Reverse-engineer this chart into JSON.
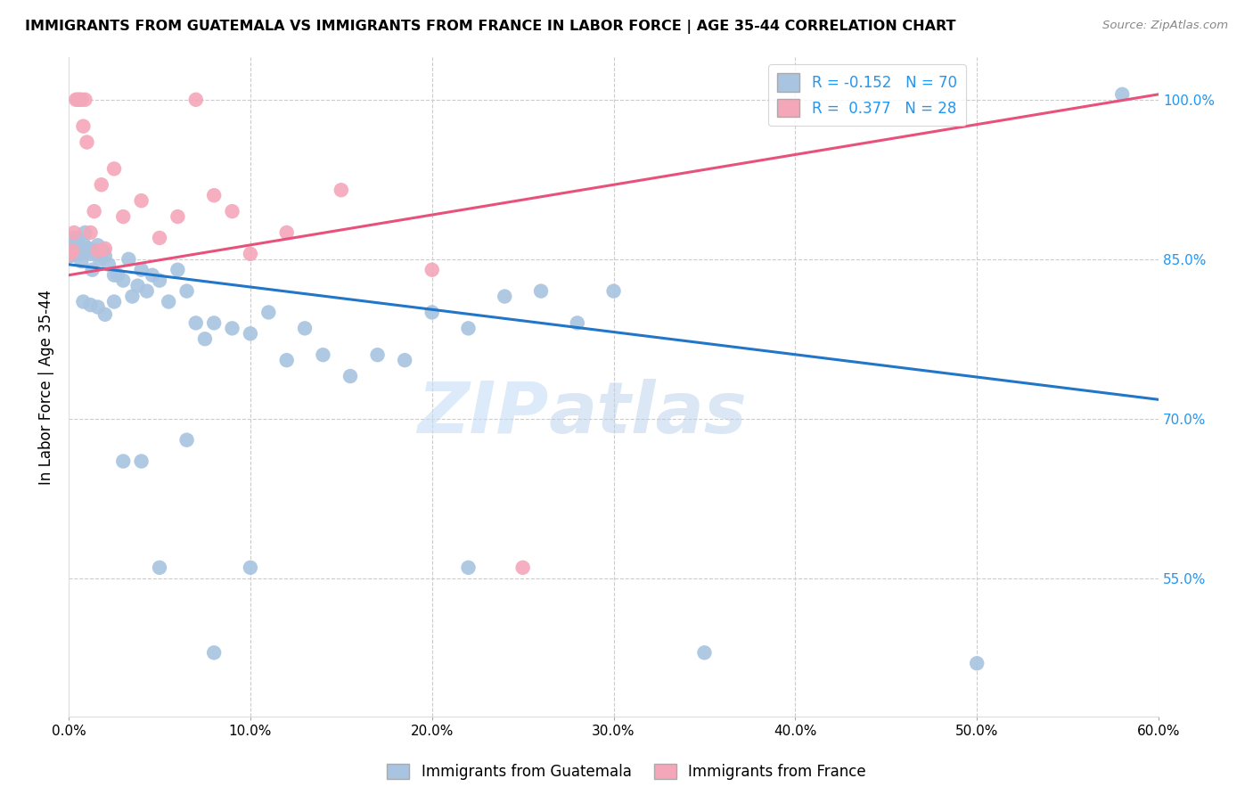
{
  "title": "IMMIGRANTS FROM GUATEMALA VS IMMIGRANTS FROM FRANCE IN LABOR FORCE | AGE 35-44 CORRELATION CHART",
  "source": "Source: ZipAtlas.com",
  "ylabel_label": "In Labor Force | Age 35-44",
  "xlim": [
    0.0,
    0.6
  ],
  "ylim": [
    0.42,
    1.04
  ],
  "ytick_positions": [
    0.55,
    0.7,
    0.85,
    1.0
  ],
  "ytick_labels": [
    "55.0%",
    "70.0%",
    "85.0%",
    "100.0%"
  ],
  "xtick_positions": [
    0.0,
    0.1,
    0.2,
    0.3,
    0.4,
    0.5,
    0.6
  ],
  "xtick_labels": [
    "0.0%",
    "10.0%",
    "20.0%",
    "30.0%",
    "40.0%",
    "50.0%",
    "60.0%"
  ],
  "r_guatemala": -0.152,
  "n_guatemala": 70,
  "r_france": 0.377,
  "n_france": 28,
  "color_guatemala": "#a8c4e0",
  "color_france": "#f4a7b9",
  "line_color_guatemala": "#2176c7",
  "line_color_france": "#e8527a",
  "watermark_zip": "ZIP",
  "watermark_atlas": "atlas",
  "guat_line_x0": 0.0,
  "guat_line_y0": 0.845,
  "guat_line_x1": 0.6,
  "guat_line_y1": 0.718,
  "france_line_x0": 0.0,
  "france_line_y0": 0.835,
  "france_line_x1": 0.6,
  "france_line_y1": 1.005,
  "guatemala_x": [
    0.001,
    0.002,
    0.003,
    0.004,
    0.005,
    0.006,
    0.007,
    0.008,
    0.009,
    0.01,
    0.011,
    0.012,
    0.013,
    0.014,
    0.015,
    0.016,
    0.017,
    0.018,
    0.019,
    0.02,
    0.022,
    0.025,
    0.027,
    0.03,
    0.033,
    0.035,
    0.038,
    0.04,
    0.043,
    0.046,
    0.05,
    0.055,
    0.06,
    0.065,
    0.07,
    0.075,
    0.08,
    0.09,
    0.1,
    0.11,
    0.12,
    0.13,
    0.14,
    0.155,
    0.17,
    0.185,
    0.2,
    0.22,
    0.24,
    0.26,
    0.28,
    0.3,
    0.001,
    0.003,
    0.005,
    0.008,
    0.012,
    0.016,
    0.02,
    0.025,
    0.03,
    0.04,
    0.05,
    0.065,
    0.08,
    0.1,
    0.22,
    0.35,
    0.5,
    0.58
  ],
  "guatemala_y": [
    0.853,
    0.87,
    0.862,
    0.858,
    0.87,
    0.855,
    0.848,
    0.865,
    0.875,
    0.858,
    0.86,
    0.855,
    0.84,
    0.858,
    0.855,
    0.863,
    0.85,
    0.853,
    0.858,
    0.853,
    0.845,
    0.835,
    0.835,
    0.83,
    0.85,
    0.815,
    0.825,
    0.84,
    0.82,
    0.835,
    0.83,
    0.81,
    0.84,
    0.82,
    0.79,
    0.775,
    0.79,
    0.785,
    0.78,
    0.8,
    0.755,
    0.785,
    0.76,
    0.74,
    0.76,
    0.755,
    0.8,
    0.785,
    0.815,
    0.82,
    0.79,
    0.82,
    0.854,
    0.855,
    0.865,
    0.81,
    0.807,
    0.805,
    0.798,
    0.81,
    0.66,
    0.66,
    0.56,
    0.68,
    0.48,
    0.56,
    0.56,
    0.48,
    0.47,
    1.005
  ],
  "france_x": [
    0.001,
    0.002,
    0.003,
    0.004,
    0.005,
    0.006,
    0.007,
    0.008,
    0.009,
    0.01,
    0.012,
    0.014,
    0.016,
    0.018,
    0.02,
    0.025,
    0.03,
    0.04,
    0.05,
    0.06,
    0.07,
    0.08,
    0.09,
    0.1,
    0.12,
    0.15,
    0.2,
    0.25
  ],
  "france_y": [
    0.855,
    0.858,
    0.875,
    1.0,
    1.0,
    1.0,
    1.0,
    0.975,
    1.0,
    0.96,
    0.875,
    0.895,
    0.858,
    0.92,
    0.86,
    0.935,
    0.89,
    0.905,
    0.87,
    0.89,
    1.0,
    0.91,
    0.895,
    0.855,
    0.875,
    0.915,
    0.84,
    0.56
  ]
}
